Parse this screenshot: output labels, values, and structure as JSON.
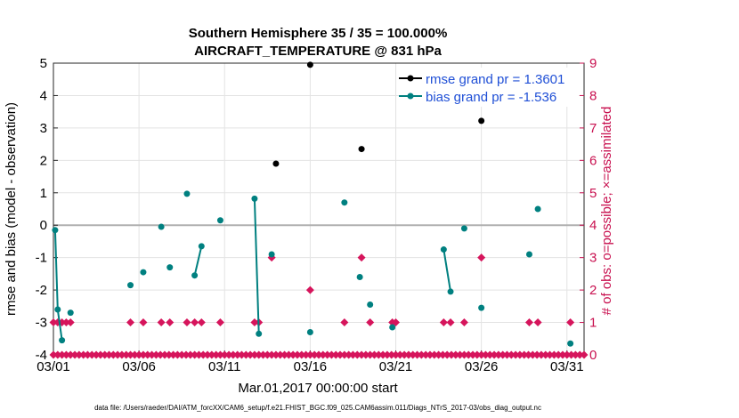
{
  "chart_data": {
    "type": "line",
    "title": "Southern Hemisphere 35 / 35 = 100.000%",
    "subtitle": "AIRCRAFT_TEMPERATURE @ 831 hPa",
    "xlabel": "Mar.01,2017 00:00:00 start",
    "ylabel": "rmse and bias (model - observation)",
    "ylabel_right": "# of obs: o=possible; ×=assimilated",
    "footer": "data file: /Users/raeder/DAI/ATM_forcXX/CAM6_setup/f.e21.FHIST_BGC.f09_025.CAM6assim.011/Diags_NTrS_2017-03/obs_diag_output.nc",
    "xlim": [
      0,
      31
    ],
    "ylim": [
      -4,
      5
    ],
    "ylim_right": [
      0,
      9
    ],
    "x_ticks": [
      {
        "x": 0,
        "label": "03/01"
      },
      {
        "x": 5,
        "label": "03/06"
      },
      {
        "x": 10,
        "label": "03/11"
      },
      {
        "x": 15,
        "label": "03/16"
      },
      {
        "x": 20,
        "label": "03/21"
      },
      {
        "x": 25,
        "label": "03/26"
      },
      {
        "x": 30,
        "label": "03/31"
      }
    ],
    "y_ticks": [
      5,
      4,
      3,
      2,
      1,
      0,
      -1,
      -2,
      -3,
      -4
    ],
    "y_ticks_right": [
      9,
      8,
      7,
      6,
      5,
      4,
      3,
      2,
      1,
      0
    ],
    "zero_line": 0,
    "legend": [
      {
        "label": "rmse grand pr = 1.3601",
        "color": "#000000"
      },
      {
        "label": "bias grand pr = -1.536",
        "color": "#008080"
      }
    ],
    "series": [
      {
        "name": "rmse",
        "color": "#000000",
        "points": [
          [
            13,
            1.9
          ],
          [
            15,
            4.95
          ],
          [
            18,
            2.35
          ],
          [
            25,
            3.22
          ]
        ]
      },
      {
        "name": "bias",
        "color": "#008080",
        "segments": [
          [
            [
              0.1,
              -0.15
            ],
            [
              0.25,
              -2.6
            ],
            [
              0.5,
              -3.55
            ]
          ],
          [
            [
              1,
              -2.7
            ]
          ],
          [
            [
              4.5,
              -1.85
            ]
          ],
          [
            [
              5.25,
              -1.45
            ]
          ],
          [
            [
              6.3,
              -0.05
            ]
          ],
          [
            [
              6.8,
              -1.3
            ]
          ],
          [
            [
              7.8,
              0.97
            ]
          ],
          [
            [
              8.25,
              -1.55
            ],
            [
              8.65,
              -0.65
            ]
          ],
          [
            [
              9.75,
              0.15
            ]
          ],
          [
            [
              11.75,
              0.82
            ],
            [
              12,
              -3.35
            ]
          ],
          [
            [
              12.75,
              -0.9
            ]
          ],
          [
            [
              15,
              -3.3
            ]
          ],
          [
            [
              17,
              0.7
            ]
          ],
          [
            [
              17.9,
              -1.6
            ]
          ],
          [
            [
              18.5,
              -2.45
            ]
          ],
          [
            [
              19.8,
              -3.15
            ]
          ],
          [
            [
              22.8,
              -0.75
            ],
            [
              23.2,
              -2.05
            ]
          ],
          [
            [
              24,
              -0.1
            ]
          ],
          [
            [
              25,
              -2.55
            ]
          ],
          [
            [
              27.8,
              -0.9
            ]
          ],
          [
            [
              28.3,
              0.5
            ]
          ],
          [
            [
              30.2,
              -3.65
            ]
          ]
        ]
      }
    ],
    "obs_possible": [
      [
        0,
        1
      ],
      [
        0.25,
        1
      ],
      [
        0.5,
        1
      ],
      [
        0.75,
        1
      ],
      [
        1,
        1
      ],
      [
        4.5,
        1
      ],
      [
        5.25,
        1
      ],
      [
        6.3,
        1
      ],
      [
        6.8,
        1
      ],
      [
        7.8,
        1
      ],
      [
        8.25,
        1
      ],
      [
        8.65,
        1
      ],
      [
        9.75,
        1
      ],
      [
        11.75,
        1
      ],
      [
        12,
        1
      ],
      [
        12.75,
        3
      ],
      [
        15,
        2
      ],
      [
        17,
        1
      ],
      [
        18,
        3
      ],
      [
        18.5,
        1
      ],
      [
        19.8,
        1
      ],
      [
        20,
        1
      ],
      [
        22.8,
        1
      ],
      [
        23.2,
        1
      ],
      [
        24,
        1
      ],
      [
        25,
        3
      ],
      [
        27.8,
        1
      ],
      [
        28.3,
        1
      ],
      [
        30.2,
        1
      ]
    ],
    "obs_assimilated_zero": "every 0.25 day",
    "obs_assimilated_start": 0,
    "obs_assimilated_end": 31
  }
}
